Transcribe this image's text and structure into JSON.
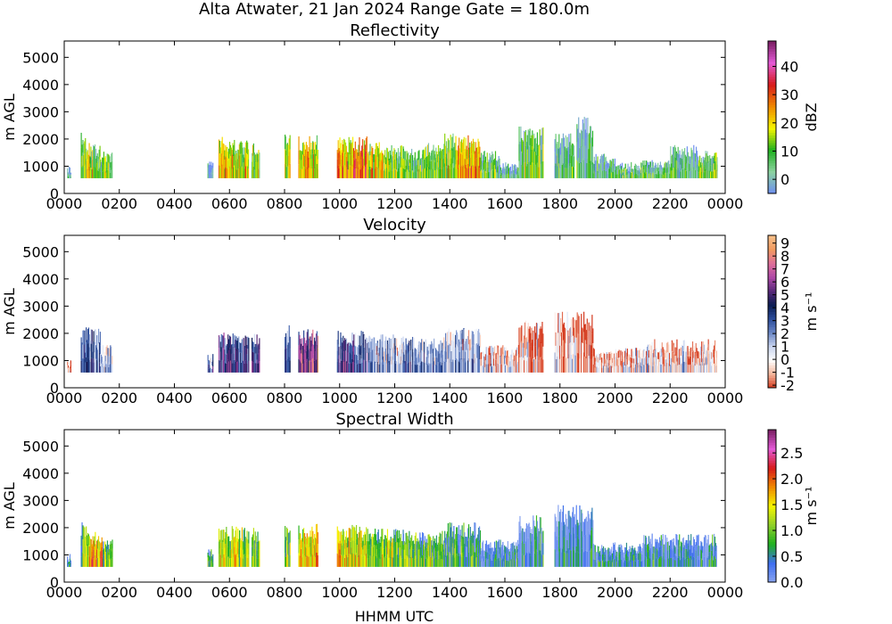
{
  "figure": {
    "suptitle": "Alta Atwater, 21 Jan 2024 Range Gate = 180.0m",
    "xlabel": "HHMM UTC"
  },
  "chart_data": [
    {
      "type": "heatmap",
      "title": "Reflectivity",
      "ylabel": "m AGL",
      "xlim": [
        0,
        2400
      ],
      "ylim": [
        0,
        5600
      ],
      "xticks": [
        "0000",
        "0200",
        "0400",
        "0600",
        "0800",
        "1000",
        "1200",
        "1400",
        "1600",
        "1800",
        "2000",
        "2200",
        "0000"
      ],
      "yticks": [
        0,
        1000,
        2000,
        3000,
        4000,
        5000
      ],
      "colorbar": {
        "label": "dBZ",
        "range": [
          -5,
          49
        ],
        "ticks": [
          0,
          10,
          20,
          30,
          40
        ],
        "colors": [
          "#6f8ff0",
          "#8cd3a0",
          "#1fb11f",
          "#f6f600",
          "#f08a00",
          "#d81a1a",
          "#e45ad7",
          "#7a1f63"
        ]
      },
      "segments": [
        {
          "x": [
            10,
            25
          ],
          "top": 1000,
          "level": 0.2
        },
        {
          "x": [
            60,
            80
          ],
          "top": 2150,
          "level": 0.35
        },
        {
          "x": [
            80,
            130
          ],
          "top": 1800,
          "level": 0.4
        },
        {
          "x": [
            130,
            175
          ],
          "top": 1500,
          "level": 0.3
        },
        {
          "x": [
            520,
            540
          ],
          "top": 1200,
          "level": 0.15
        },
        {
          "x": [
            560,
            610
          ],
          "top": 2000,
          "level": 0.5
        },
        {
          "x": [
            610,
            670
          ],
          "top": 1900,
          "level": 0.45
        },
        {
          "x": [
            680,
            710
          ],
          "top": 1900,
          "level": 0.35
        },
        {
          "x": [
            800,
            820
          ],
          "top": 2200,
          "level": 0.4
        },
        {
          "x": [
            850,
            880
          ],
          "top": 2000,
          "level": 0.55
        },
        {
          "x": [
            880,
            920
          ],
          "top": 2050,
          "level": 0.5
        },
        {
          "x": [
            990,
            1040
          ],
          "top": 2000,
          "level": 0.55
        },
        {
          "x": [
            1040,
            1100
          ],
          "top": 2000,
          "level": 0.6
        },
        {
          "x": [
            1100,
            1160
          ],
          "top": 1900,
          "level": 0.45
        },
        {
          "x": [
            1160,
            1230
          ],
          "top": 1700,
          "level": 0.35
        },
        {
          "x": [
            1230,
            1300
          ],
          "top": 1600,
          "level": 0.3
        },
        {
          "x": [
            1300,
            1380
          ],
          "top": 1800,
          "level": 0.35
        },
        {
          "x": [
            1380,
            1420
          ],
          "top": 2100,
          "level": 0.4
        },
        {
          "x": [
            1420,
            1510
          ],
          "top": 2050,
          "level": 0.55
        },
        {
          "x": [
            1510,
            1580
          ],
          "top": 1500,
          "level": 0.25
        },
        {
          "x": [
            1580,
            1650
          ],
          "top": 1100,
          "level": 0.2
        },
        {
          "x": [
            1650,
            1740
          ],
          "top": 2350,
          "level": 0.3
        },
        {
          "x": [
            1780,
            1850
          ],
          "top": 2100,
          "level": 0.2
        },
        {
          "x": [
            1860,
            1920
          ],
          "top": 2700,
          "level": 0.15
        },
        {
          "x": [
            1920,
            2000
          ],
          "top": 1400,
          "level": 0.2
        },
        {
          "x": [
            2000,
            2100
          ],
          "top": 1100,
          "level": 0.25
        },
        {
          "x": [
            2100,
            2200
          ],
          "top": 1200,
          "level": 0.25
        },
        {
          "x": [
            2200,
            2300
          ],
          "top": 1700,
          "level": 0.2
        },
        {
          "x": [
            2300,
            2370
          ],
          "top": 1500,
          "level": 0.3
        }
      ]
    },
    {
      "type": "heatmap",
      "title": "Velocity",
      "ylabel": "m s⁻¹",
      "ylabel_axis": "m AGL",
      "xlim": [
        0,
        2400
      ],
      "ylim": [
        0,
        5600
      ],
      "xticks": [
        "0000",
        "0200",
        "0400",
        "0600",
        "0800",
        "1000",
        "1200",
        "1400",
        "1600",
        "1800",
        "2000",
        "2200",
        "0000"
      ],
      "yticks": [
        0,
        1000,
        2000,
        3000,
        4000,
        5000
      ],
      "colorbar": {
        "label": "m s⁻¹",
        "range": [
          -2.2,
          9.6
        ],
        "ticks": [
          -2,
          -1,
          0,
          1,
          2,
          3,
          4,
          5,
          6,
          7,
          8,
          9
        ],
        "colors": [
          "#d43a1f",
          "#f4b59a",
          "#ffffff",
          "#c8d4ef",
          "#6a86c6",
          "#2b4c9a",
          "#0b1c52",
          "#5a2a7a",
          "#b04aa8",
          "#e0709a",
          "#f19a60",
          "#f6c08a"
        ]
      },
      "segments": [
        {
          "x": [
            10,
            25
          ],
          "top": 1000,
          "level": 0.1
        },
        {
          "x": [
            60,
            130
          ],
          "top": 2150,
          "level": 0.45
        },
        {
          "x": [
            130,
            175
          ],
          "top": 1500,
          "level": 0.35
        },
        {
          "x": [
            520,
            540
          ],
          "top": 1200,
          "level": 0.4
        },
        {
          "x": [
            560,
            670
          ],
          "top": 2000,
          "level": 0.55
        },
        {
          "x": [
            680,
            710
          ],
          "top": 1900,
          "level": 0.5
        },
        {
          "x": [
            800,
            820
          ],
          "top": 2200,
          "level": 0.55
        },
        {
          "x": [
            850,
            920
          ],
          "top": 2050,
          "level": 0.7
        },
        {
          "x": [
            990,
            1100
          ],
          "top": 2000,
          "level": 0.55
        },
        {
          "x": [
            1100,
            1230
          ],
          "top": 1900,
          "level": 0.35
        },
        {
          "x": [
            1230,
            1380
          ],
          "top": 1800,
          "level": 0.4
        },
        {
          "x": [
            1380,
            1510
          ],
          "top": 2100,
          "level": 0.35
        },
        {
          "x": [
            1510,
            1650
          ],
          "top": 1500,
          "level": 0.2
        },
        {
          "x": [
            1650,
            1740
          ],
          "top": 2350,
          "level": 0.15
        },
        {
          "x": [
            1780,
            1920
          ],
          "top": 2700,
          "level": 0.15
        },
        {
          "x": [
            1920,
            2100
          ],
          "top": 1400,
          "level": 0.2
        },
        {
          "x": [
            2100,
            2370
          ],
          "top": 1700,
          "level": 0.2
        }
      ]
    },
    {
      "type": "heatmap",
      "title": "Spectral Width",
      "ylabel": "m s⁻¹",
      "ylabel_axis": "m AGL",
      "xlim": [
        0,
        2400
      ],
      "ylim": [
        0,
        5600
      ],
      "xticks": [
        "0000",
        "0200",
        "0400",
        "0600",
        "0800",
        "1000",
        "1200",
        "1400",
        "1600",
        "1800",
        "2000",
        "2200",
        "0000"
      ],
      "yticks": [
        0,
        1000,
        2000,
        3000,
        4000,
        5000
      ],
      "colorbar": {
        "label": "m s⁻¹",
        "range": [
          0,
          2.95
        ],
        "ticks": [
          0.0,
          0.5,
          1.0,
          1.5,
          2.0,
          2.5
        ],
        "colors": [
          "#8aa5f0",
          "#3f6ff0",
          "#1fb11f",
          "#8fd02a",
          "#f6f600",
          "#f08a00",
          "#d81a1a",
          "#e45ad7",
          "#7a1f63"
        ]
      },
      "segments": [
        {
          "x": [
            10,
            25
          ],
          "top": 1000,
          "level": 0.3
        },
        {
          "x": [
            60,
            90
          ],
          "top": 2150,
          "level": 0.35
        },
        {
          "x": [
            90,
            140
          ],
          "top": 1800,
          "level": 0.6
        },
        {
          "x": [
            140,
            175
          ],
          "top": 1500,
          "level": 0.35
        },
        {
          "x": [
            520,
            540
          ],
          "top": 1200,
          "level": 0.3
        },
        {
          "x": [
            560,
            670
          ],
          "top": 2000,
          "level": 0.45
        },
        {
          "x": [
            680,
            710
          ],
          "top": 1900,
          "level": 0.35
        },
        {
          "x": [
            800,
            820
          ],
          "top": 2200,
          "level": 0.35
        },
        {
          "x": [
            850,
            920
          ],
          "top": 2050,
          "level": 0.5
        },
        {
          "x": [
            990,
            1100
          ],
          "top": 2000,
          "level": 0.5
        },
        {
          "x": [
            1100,
            1230
          ],
          "top": 1900,
          "level": 0.4
        },
        {
          "x": [
            1230,
            1380
          ],
          "top": 1800,
          "level": 0.35
        },
        {
          "x": [
            1380,
            1510
          ],
          "top": 2100,
          "level": 0.25
        },
        {
          "x": [
            1510,
            1650
          ],
          "top": 1500,
          "level": 0.15
        },
        {
          "x": [
            1650,
            1740
          ],
          "top": 2350,
          "level": 0.15
        },
        {
          "x": [
            1780,
            1920
          ],
          "top": 2700,
          "level": 0.12
        },
        {
          "x": [
            1920,
            2100
          ],
          "top": 1400,
          "level": 0.15
        },
        {
          "x": [
            2100,
            2370
          ],
          "top": 1700,
          "level": 0.15
        }
      ]
    }
  ]
}
